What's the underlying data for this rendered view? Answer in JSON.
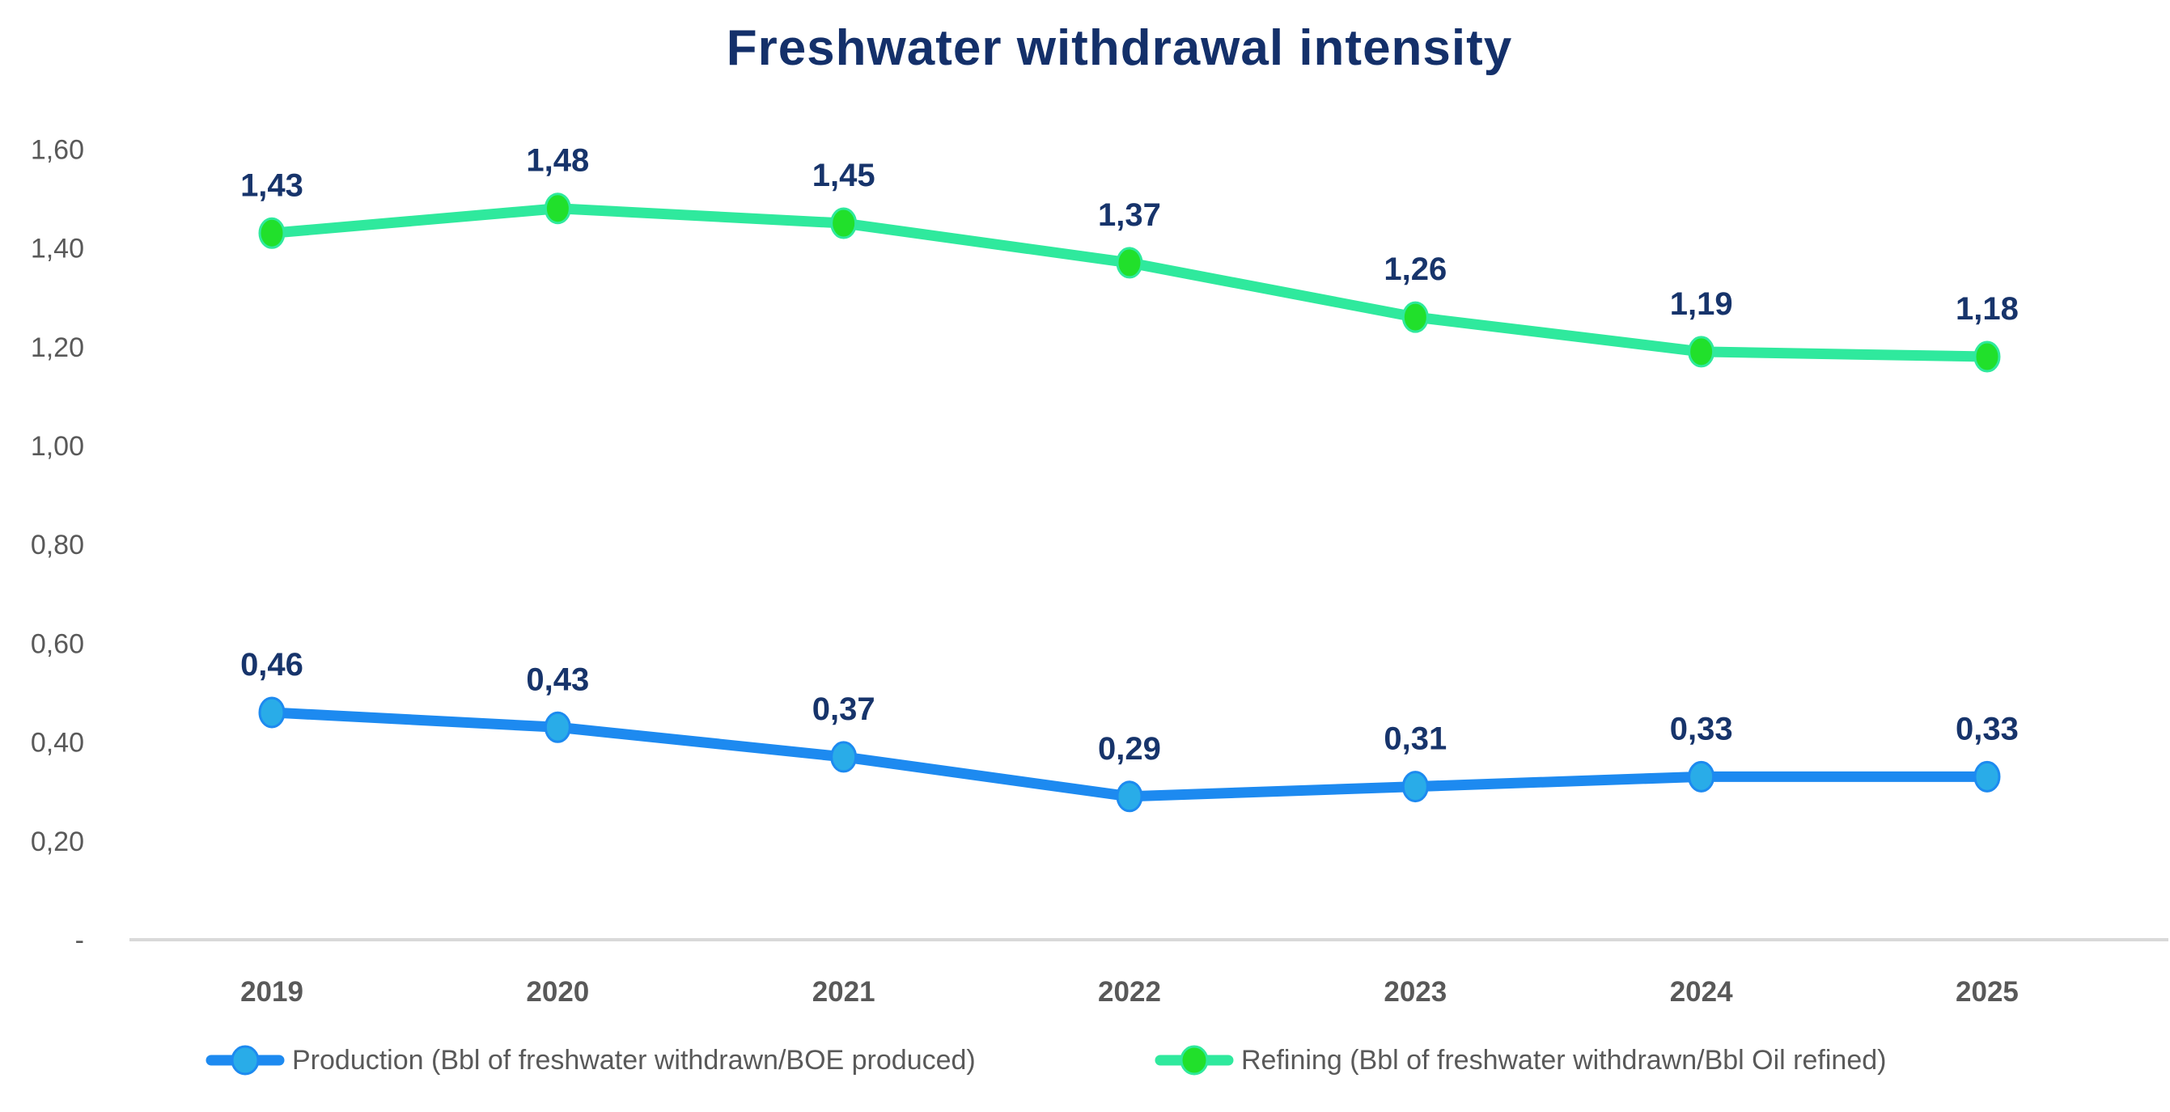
{
  "chart": {
    "title": "Freshwater withdrawal intensity",
    "colors": {
      "title_navy": "#14306a",
      "data_label_navy": "#17346b",
      "axis_text_gray": "#595959",
      "axis_line_gray": "#d9d9d9",
      "production_line_blue": "#1d8af0",
      "production_marker_blue": "#29ace8",
      "refining_line_green": "#2fe99d",
      "refining_marker_green": "#21e02b",
      "background": "#ffffff"
    }
  },
  "chart_data": {
    "type": "line",
    "title": "Freshwater withdrawal intensity",
    "xlabel": "",
    "ylabel": "",
    "grid": false,
    "legend_position": "bottom",
    "ylim": [
      0,
      1.7
    ],
    "categories": [
      "2019",
      "2020",
      "2021",
      "2022",
      "2023",
      "2024",
      "2025"
    ],
    "y_axis": {
      "tick_labels": [
        "1,60",
        "1,40",
        "1,20",
        "1,00",
        "0,80",
        "0,60",
        "0,40",
        "0,20",
        "-"
      ],
      "tick_values": [
        1.6,
        1.4,
        1.2,
        1.0,
        0.8,
        0.6,
        0.4,
        0.2,
        0
      ]
    },
    "series": [
      {
        "name": "Refining (Bbl of freshwater withdrawn/Bbl Oil refined)",
        "values": [
          1.43,
          1.48,
          1.45,
          1.37,
          1.26,
          1.19,
          1.18
        ],
        "labels": [
          "1,43",
          "1,48",
          "1,45",
          "1,37",
          "1,26",
          "1,19",
          "1,18"
        ],
        "line_color": "#2fe99d",
        "marker_color": "#21e02b"
      },
      {
        "name": "Production (Bbl of freshwater withdrawn/BOE produced)",
        "values": [
          0.46,
          0.43,
          0.37,
          0.29,
          0.31,
          0.33,
          0.33
        ],
        "labels": [
          "0,46",
          "0,43",
          "0,37",
          "0,29",
          "0,31",
          "0,33",
          "0,33"
        ],
        "line_color": "#1d8af0",
        "marker_color": "#29ace8"
      }
    ]
  },
  "legend": {
    "production_label": "Production (Bbl of freshwater withdrawn/BOE produced)",
    "refining_label": "Refining (Bbl of freshwater withdrawn/Bbl Oil refined)"
  }
}
